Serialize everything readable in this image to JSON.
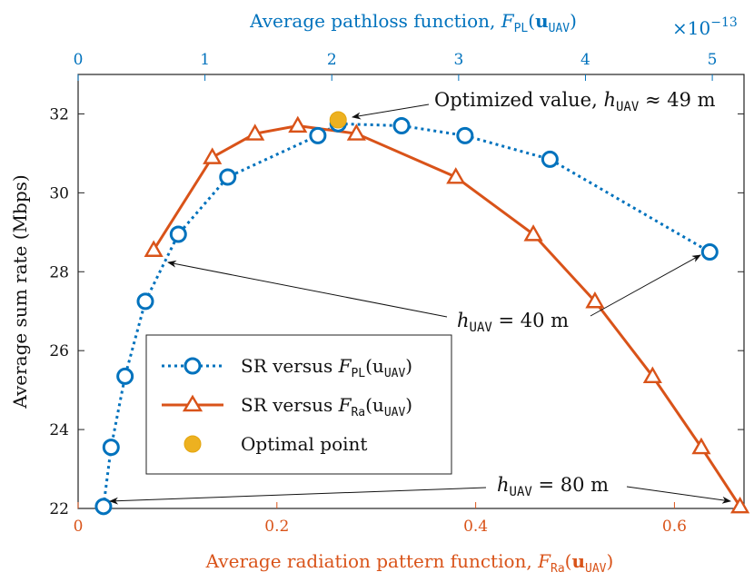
{
  "chart_data": {
    "type": "line",
    "ylabel": "Average sum rate (Mbps)",
    "ylim": [
      22,
      33
    ],
    "yticks": [
      "22",
      "24",
      "26",
      "28",
      "30",
      "32"
    ],
    "x_bottom": {
      "label": "Average radiation pattern function,",
      "label_math": "F_Ra(u_UAV)",
      "lim": [
        0,
        0.67
      ],
      "ticks": [
        0,
        0.2,
        0.4,
        0.6
      ],
      "tick_labels": [
        "0",
        "0.2",
        "0.4",
        "0.6"
      ],
      "color": "#d95319"
    },
    "x_top": {
      "label": "Average pathloss function,",
      "label_math": "F_PL(u_UAV)",
      "lim": [
        0,
        5.25
      ],
      "ticks": [
        0,
        1,
        2,
        3,
        4,
        5
      ],
      "tick_labels": [
        "0",
        "1",
        "2",
        "3",
        "4",
        "5"
      ],
      "exponent_label": "×10",
      "exponent_power": "−13",
      "color": "#0072bd"
    },
    "series": [
      {
        "name": "SR versus F_PL(u_UAV)",
        "legend_prefix": "SR versus ",
        "legend_F": "F",
        "legend_sub": "PL",
        "legend_arg": "(u",
        "legend_arg_sub": "UAV",
        "legend_close": ")",
        "axis": "top",
        "color": "#0072bd",
        "marker": "circle",
        "style": "dotted",
        "x": [
          0.2,
          0.26,
          0.37,
          0.53,
          0.79,
          1.18,
          1.89,
          2.05,
          2.55,
          3.05,
          3.72,
          4.98
        ],
        "y": [
          22.05,
          23.55,
          25.35,
          27.25,
          28.95,
          30.4,
          31.45,
          31.75,
          31.7,
          31.45,
          30.85,
          28.5
        ]
      },
      {
        "name": "SR versus F_Ra(u_UAV)",
        "legend_prefix": "SR versus ",
        "legend_F": "F",
        "legend_sub": "Ra",
        "legend_arg": "(u",
        "legend_arg_sub": "UAV",
        "legend_close": ")",
        "axis": "bottom",
        "color": "#d95319",
        "marker": "triangle",
        "style": "solid",
        "x": [
          0.076,
          0.135,
          0.178,
          0.221,
          0.28,
          0.38,
          0.458,
          0.52,
          0.578,
          0.627,
          0.666
        ],
        "y": [
          28.55,
          30.9,
          31.5,
          31.7,
          31.5,
          30.4,
          28.95,
          27.25,
          25.35,
          23.55,
          22.05
        ]
      }
    ],
    "optimal_point": {
      "name": "Optimal point",
      "x_top": 2.05,
      "y": 31.85,
      "color": "#edb120"
    },
    "annotations": [
      {
        "text": "Optimized value, ",
        "math_h": "h",
        "math_sub": "UAV",
        "math_rest": " ≈ 49 m"
      },
      {
        "text": "",
        "math_h": "h",
        "math_sub": "UAV",
        "math_rest": " = 40 m"
      },
      {
        "text": "",
        "math_h": "h",
        "math_sub": "UAV",
        "math_rest": " = 80 m"
      }
    ],
    "legend_position": "lower-left"
  }
}
